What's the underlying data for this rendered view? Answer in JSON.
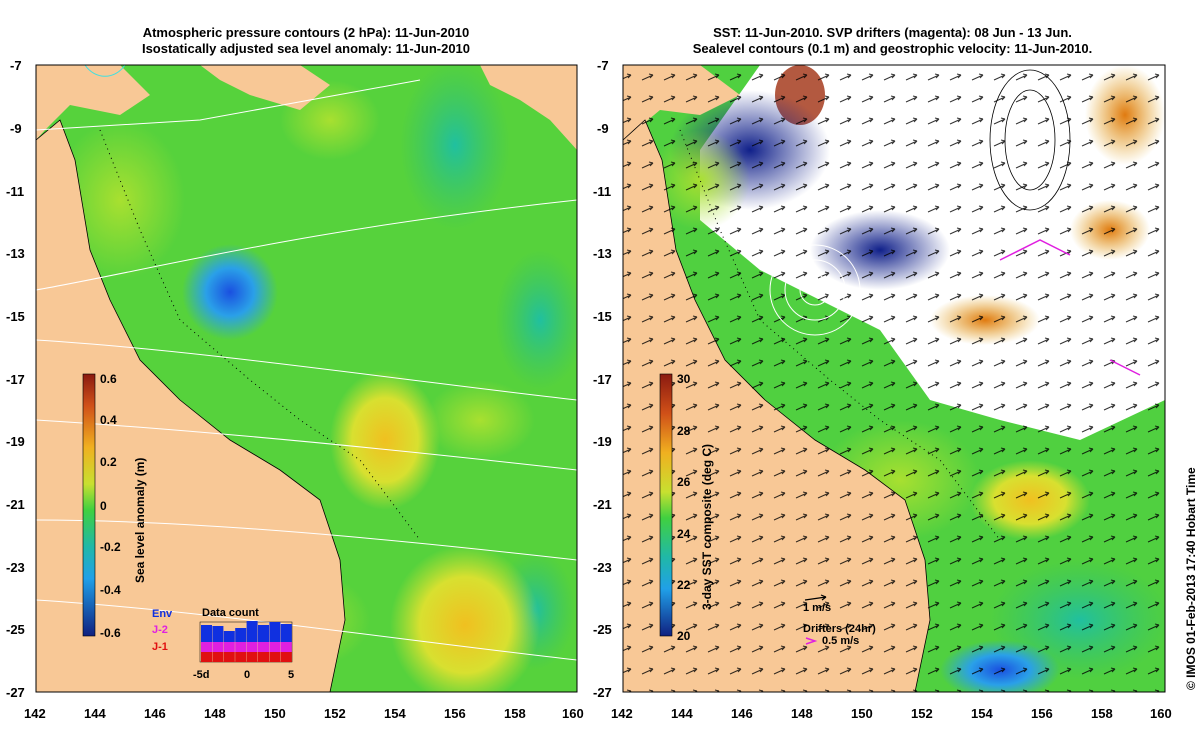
{
  "left_panel": {
    "title_line1": "Atmospheric pressure contours (2 hPa): 11-Jun-2010",
    "title_line2": "Isostatically adjusted sea level anomaly: 11-Jun-2010",
    "y_ticks": [
      "-7",
      "-9",
      "-11",
      "-13",
      "-15",
      "-17",
      "-19",
      "-21",
      "-23",
      "-25",
      "-27"
    ],
    "x_ticks": [
      "142",
      "144",
      "146",
      "148",
      "150",
      "152",
      "154",
      "156",
      "158",
      "160"
    ],
    "colorbar": {
      "label": "Sea level anomaly (m)",
      "ticks": [
        "0.6",
        "0.4",
        "0.2",
        "0",
        "-0.2",
        "-0.4",
        "-0.6"
      ]
    },
    "data_count": {
      "title": "Data count",
      "legend": [
        "Env",
        "J-2",
        "J-1"
      ],
      "legend_colors": [
        "#1030e0",
        "#e020e0",
        "#e01010"
      ],
      "x_ticks": [
        "-5d",
        "0",
        "5"
      ]
    }
  },
  "right_panel": {
    "title_line1": "SST: 11-Jun-2010. SVP drifters (magenta): 08 Jun - 13 Jun.",
    "title_line2": "Sealevel contours (0.1 m) and geostrophic velocity: 11-Jun-2010.",
    "y_ticks": [
      "-7",
      "-9",
      "-11",
      "-13",
      "-15",
      "-17",
      "-19",
      "-21",
      "-23",
      "-25",
      "-27"
    ],
    "x_ticks": [
      "142",
      "144",
      "146",
      "148",
      "150",
      "152",
      "154",
      "156",
      "158",
      "160"
    ],
    "colorbar": {
      "label": "3-day SST composite (deg C)",
      "ticks": [
        "30",
        "28",
        "26",
        "24",
        "22",
        "20"
      ]
    },
    "velocity_scale": "1 m/s",
    "drifters_label": "Drifters (24hr)",
    "drifters_speed": "0.5 m/s"
  },
  "credit": "© IMOS 01-Feb-2013 17:40 Hobart Time",
  "colors": {
    "land": "#f8c896",
    "ocean_base_left": "#56d23c",
    "sst_base_right": "#50d040",
    "cloud": "#ffffff"
  }
}
